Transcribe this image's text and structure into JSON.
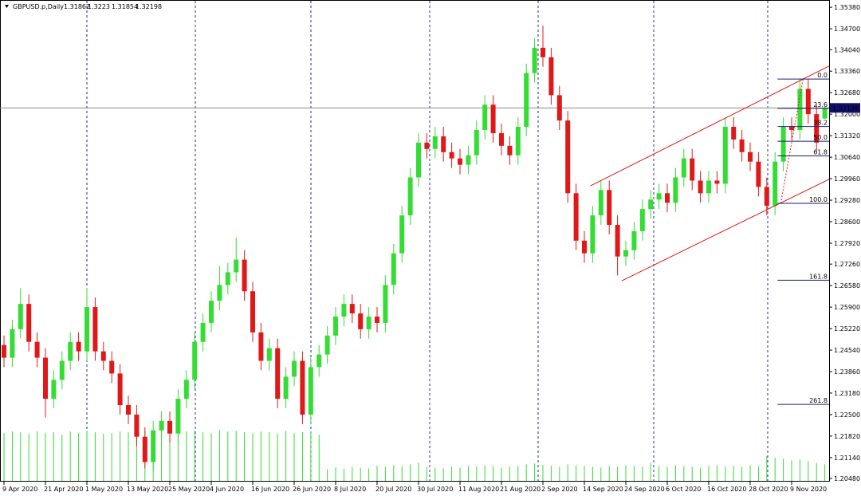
{
  "chart_data": {
    "type": "candlestick",
    "title": "GBPUSD.p,Daily",
    "ohlc_header": [
      1.31862,
      1.3223,
      1.31854,
      1.32198
    ],
    "ylim": [
      1.2038,
      1.3561
    ],
    "yticks": [
      {
        "value": 1.3538,
        "label": "1.35380"
      },
      {
        "value": 1.347,
        "label": "1.34700"
      },
      {
        "value": 1.3404,
        "label": "1.34040"
      },
      {
        "value": 1.3336,
        "label": "1.33360"
      },
      {
        "value": 1.3268,
        "label": "1.32680"
      },
      {
        "value": 1.32,
        "label": "1.32000"
      },
      {
        "value": 1.3132,
        "label": "1.31320"
      },
      {
        "value": 1.3064,
        "label": "1.30640"
      },
      {
        "value": 1.2996,
        "label": "1.29960"
      },
      {
        "value": 1.2928,
        "label": "1.29280"
      },
      {
        "value": 1.286,
        "label": "1.28600"
      },
      {
        "value": 1.2792,
        "label": "1.27920"
      },
      {
        "value": 1.2726,
        "label": "1.27260"
      },
      {
        "value": 1.2658,
        "label": "1.26580"
      },
      {
        "value": 1.259,
        "label": "1.25900"
      },
      {
        "value": 1.2522,
        "label": "1.25220"
      },
      {
        "value": 1.2454,
        "label": "1.24540"
      },
      {
        "value": 1.2386,
        "label": "1.23860"
      },
      {
        "value": 1.2318,
        "label": "1.23180"
      },
      {
        "value": 1.225,
        "label": "1.22500"
      },
      {
        "value": 1.2182,
        "label": "1.21820"
      },
      {
        "value": 1.2114,
        "label": "1.21140"
      },
      {
        "value": 1.2048,
        "label": "1.20480"
      }
    ],
    "current_price": 1.32198,
    "up_color": "#33dd33",
    "down_color": "#e01818",
    "volume_color": "#33dd33",
    "categories": [
      "9 Apr 2020",
      null,
      null,
      null,
      null,
      "21 Apr 2020",
      null,
      null,
      null,
      null,
      "1 May 2020",
      null,
      null,
      null,
      null,
      "13 May 2020",
      null,
      null,
      null,
      null,
      "25 May 2020",
      null,
      null,
      null,
      null,
      "4 Jun 2020",
      null,
      null,
      null,
      null,
      "16 Jun 2020",
      null,
      null,
      null,
      null,
      "26 Jun 2020",
      null,
      null,
      null,
      null,
      "8 Jul 2020",
      null,
      null,
      null,
      null,
      "20 Jul 2020",
      null,
      null,
      null,
      null,
      "30 Jul 2020",
      null,
      null,
      null,
      null,
      "11 Aug 2020",
      null,
      null,
      null,
      null,
      "21 Aug 2020",
      null,
      null,
      null,
      null,
      "2 Sep 2020",
      null,
      null,
      null,
      null,
      "14 Sep 2020",
      null,
      null,
      null,
      null,
      "24 Sep 2020",
      null,
      null,
      null,
      null,
      "6 Oct 2020",
      null,
      null,
      null,
      null,
      "16 Oct 2020",
      null,
      null,
      null,
      null,
      "28 Oct 2020",
      null,
      null,
      null,
      null,
      "9 Nov 2020",
      null,
      null,
      null,
      null
    ],
    "candles": [
      [
        1.247,
        1.25,
        1.24,
        1.243
      ],
      [
        1.243,
        1.255,
        1.24,
        1.252
      ],
      [
        1.252,
        1.265,
        1.249,
        1.26
      ],
      [
        1.26,
        1.263,
        1.245,
        1.248
      ],
      [
        1.248,
        1.251,
        1.24,
        1.243
      ],
      [
        1.243,
        1.246,
        1.224,
        1.23
      ],
      [
        1.23,
        1.239,
        1.227,
        1.236
      ],
      [
        1.236,
        1.245,
        1.233,
        1.242
      ],
      [
        1.242,
        1.251,
        1.239,
        1.248
      ],
      [
        1.248,
        1.251,
        1.242,
        1.245
      ],
      [
        1.245,
        1.265,
        1.242,
        1.259
      ],
      [
        1.259,
        1.262,
        1.242,
        1.245
      ],
      [
        1.245,
        1.248,
        1.239,
        1.242
      ],
      [
        1.242,
        1.245,
        1.235,
        1.238
      ],
      [
        1.238,
        1.241,
        1.225,
        1.228
      ],
      [
        1.228,
        1.231,
        1.222,
        1.225
      ],
      [
        1.225,
        1.228,
        1.215,
        1.218
      ],
      [
        1.218,
        1.221,
        1.208,
        1.21
      ],
      [
        1.21,
        1.223,
        1.207,
        1.22
      ],
      [
        1.22,
        1.226,
        1.217,
        1.223
      ],
      [
        1.223,
        1.226,
        1.216,
        1.219
      ],
      [
        1.219,
        1.233,
        1.216,
        1.23
      ],
      [
        1.23,
        1.239,
        1.227,
        1.236
      ],
      [
        1.236,
        1.251,
        1.233,
        1.248
      ],
      [
        1.248,
        1.257,
        1.245,
        1.254
      ],
      [
        1.254,
        1.264,
        1.251,
        1.261
      ],
      [
        1.261,
        1.272,
        1.258,
        1.266
      ],
      [
        1.266,
        1.273,
        1.263,
        1.27
      ],
      [
        1.27,
        1.281,
        1.267,
        1.274
      ],
      [
        1.274,
        1.277,
        1.261,
        1.264
      ],
      [
        1.264,
        1.267,
        1.248,
        1.251
      ],
      [
        1.251,
        1.254,
        1.239,
        1.242
      ],
      [
        1.242,
        1.249,
        1.239,
        1.246
      ],
      [
        1.246,
        1.249,
        1.227,
        1.23
      ],
      [
        1.23,
        1.24,
        1.227,
        1.237
      ],
      [
        1.237,
        1.245,
        1.234,
        1.242
      ],
      [
        1.242,
        1.245,
        1.222,
        1.225
      ],
      [
        1.225,
        1.243,
        1.222,
        1.24
      ],
      [
        1.24,
        1.247,
        1.237,
        1.244
      ],
      [
        1.244,
        1.253,
        1.241,
        1.25
      ],
      [
        1.25,
        1.259,
        1.247,
        1.256
      ],
      [
        1.256,
        1.263,
        1.253,
        1.26
      ],
      [
        1.26,
        1.263,
        1.254,
        1.257
      ],
      [
        1.257,
        1.26,
        1.249,
        1.252
      ],
      [
        1.252,
        1.259,
        1.249,
        1.256
      ],
      [
        1.256,
        1.259,
        1.251,
        1.254
      ],
      [
        1.254,
        1.269,
        1.251,
        1.266
      ],
      [
        1.266,
        1.279,
        1.263,
        1.276
      ],
      [
        1.276,
        1.291,
        1.273,
        1.288
      ],
      [
        1.288,
        1.303,
        1.285,
        1.3
      ],
      [
        1.3,
        1.314,
        1.297,
        1.311
      ],
      [
        1.311,
        1.314,
        1.306,
        1.309
      ],
      [
        1.309,
        1.316,
        1.306,
        1.313
      ],
      [
        1.313,
        1.316,
        1.305,
        1.308
      ],
      [
        1.308,
        1.311,
        1.303,
        1.306
      ],
      [
        1.306,
        1.309,
        1.301,
        1.304
      ],
      [
        1.304,
        1.31,
        1.301,
        1.307
      ],
      [
        1.307,
        1.318,
        1.304,
        1.315
      ],
      [
        1.315,
        1.326,
        1.312,
        1.323
      ],
      [
        1.323,
        1.326,
        1.311,
        1.314
      ],
      [
        1.314,
        1.317,
        1.307,
        1.31
      ],
      [
        1.31,
        1.313,
        1.304,
        1.307
      ],
      [
        1.307,
        1.319,
        1.304,
        1.316
      ],
      [
        1.316,
        1.336,
        1.313,
        1.333
      ],
      [
        1.333,
        1.344,
        1.33,
        1.341
      ],
      [
        1.341,
        1.348,
        1.335,
        1.338
      ],
      [
        1.338,
        1.341,
        1.323,
        1.326
      ],
      [
        1.326,
        1.329,
        1.315,
        1.318
      ],
      [
        1.318,
        1.321,
        1.292,
        1.295
      ],
      [
        1.295,
        1.298,
        1.277,
        1.28
      ],
      [
        1.28,
        1.283,
        1.273,
        1.276
      ],
      [
        1.276,
        1.291,
        1.273,
        1.288
      ],
      [
        1.288,
        1.299,
        1.285,
        1.296
      ],
      [
        1.296,
        1.299,
        1.282,
        1.285
      ],
      [
        1.285,
        1.288,
        1.269,
        1.275
      ],
      [
        1.275,
        1.28,
        1.272,
        1.277
      ],
      [
        1.277,
        1.286,
        1.274,
        1.283
      ],
      [
        1.283,
        1.293,
        1.28,
        1.29
      ],
      [
        1.29,
        1.296,
        1.287,
        1.293
      ],
      [
        1.293,
        1.298,
        1.29,
        1.295
      ],
      [
        1.295,
        1.298,
        1.289,
        1.292
      ],
      [
        1.292,
        1.303,
        1.289,
        1.3
      ],
      [
        1.3,
        1.309,
        1.297,
        1.306
      ],
      [
        1.306,
        1.309,
        1.296,
        1.299
      ],
      [
        1.299,
        1.302,
        1.292,
        1.295
      ],
      [
        1.295,
        1.302,
        1.292,
        1.299
      ],
      [
        1.299,
        1.302,
        1.295,
        1.298
      ],
      [
        1.298,
        1.319,
        1.295,
        1.316
      ],
      [
        1.316,
        1.319,
        1.309,
        1.312
      ],
      [
        1.312,
        1.315,
        1.305,
        1.308
      ],
      [
        1.308,
        1.311,
        1.302,
        1.305
      ],
      [
        1.305,
        1.308,
        1.294,
        1.297
      ],
      [
        1.297,
        1.3,
        1.288,
        1.291
      ],
      [
        1.291,
        1.308,
        1.288,
        1.305
      ],
      [
        1.305,
        1.319,
        1.302,
        1.316
      ],
      [
        1.316,
        1.319,
        1.312,
        1.315
      ],
      [
        1.315,
        1.331,
        1.312,
        1.328
      ],
      [
        1.328,
        1.331,
        1.317,
        1.32
      ],
      [
        1.32,
        1.323,
        1.308,
        1.311
      ],
      [
        1.31862,
        1.3223,
        1.31854,
        1.32198
      ]
    ],
    "volumes": [
      58,
      60,
      59,
      57,
      60,
      58,
      59,
      56,
      60,
      58,
      61,
      59,
      57,
      58,
      60,
      59,
      57,
      61,
      58,
      60,
      59,
      58,
      60,
      61,
      59,
      58,
      62,
      60,
      61,
      59,
      58,
      60,
      59,
      57,
      61,
      58,
      59,
      60,
      56,
      14,
      16,
      15,
      17,
      16,
      15,
      18,
      17,
      19,
      18,
      20,
      22,
      17,
      16,
      15,
      17,
      16,
      18,
      17,
      19,
      18,
      16,
      17,
      18,
      20,
      21,
      19,
      18,
      17,
      20,
      19,
      18,
      17,
      16,
      18,
      17,
      19,
      18,
      17,
      22,
      18,
      17,
      19,
      18,
      17,
      16,
      18,
      19,
      17,
      18,
      17,
      19,
      18,
      30,
      28,
      27,
      25,
      26,
      24,
      22,
      20
    ],
    "trendlines": [
      {
        "from": [
          70.7,
          1.2973
        ],
        "to": [
          99.5,
          1.3352
        ]
      },
      {
        "from": [
          74.5,
          1.2673
        ],
        "to": [
          99.5,
          1.2994
        ]
      }
    ],
    "fibo": {
      "high": 1.3311,
      "low": 1.2918,
      "levels": [
        {
          "value": 0,
          "label": "0.0"
        },
        23.6,
        38.2,
        {
          "value": 50,
          "label": "50.0"
        },
        61.8,
        {
          "value": 100,
          "label": "100.0"
        },
        161.8,
        261.8
      ]
    }
  }
}
